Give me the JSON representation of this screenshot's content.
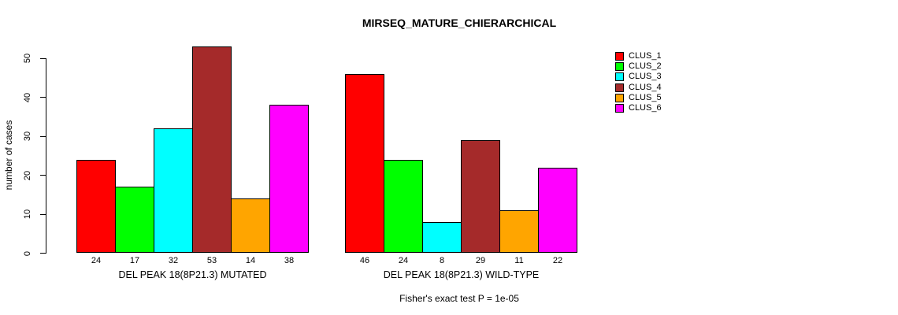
{
  "chart_data": {
    "type": "bar",
    "title": "MIRSEQ_MATURE_CHIERARCHICAL",
    "ylabel": "number of cases",
    "xlabel": "",
    "categories": [
      "DEL PEAK 18(8P21.3) MUTATED",
      "DEL PEAK 18(8P21.3) WILD-TYPE"
    ],
    "series": [
      {
        "name": "CLUS_1",
        "color": "#FF0000",
        "values": [
          24,
          46
        ]
      },
      {
        "name": "CLUS_2",
        "color": "#00FF00",
        "values": [
          17,
          24
        ]
      },
      {
        "name": "CLUS_3",
        "color": "#00FFFF",
        "values": [
          32,
          8
        ]
      },
      {
        "name": "CLUS_4",
        "color": "#A52A2A",
        "values": [
          53,
          29
        ]
      },
      {
        "name": "CLUS_5",
        "color": "#FFA500",
        "values": [
          14,
          11
        ]
      },
      {
        "name": "CLUS_6",
        "color": "#FF00FF",
        "values": [
          38,
          22
        ]
      }
    ],
    "yticks": [
      0,
      10,
      20,
      30,
      40,
      50
    ],
    "ylim": [
      0,
      53
    ],
    "grid": false,
    "legend_position": "right-outside",
    "bar_value_labels": true,
    "annotation": "Fisher's exact test P = 1e-05",
    "bar_border_color": "#000000",
    "background_color": "#FFFFFF"
  }
}
